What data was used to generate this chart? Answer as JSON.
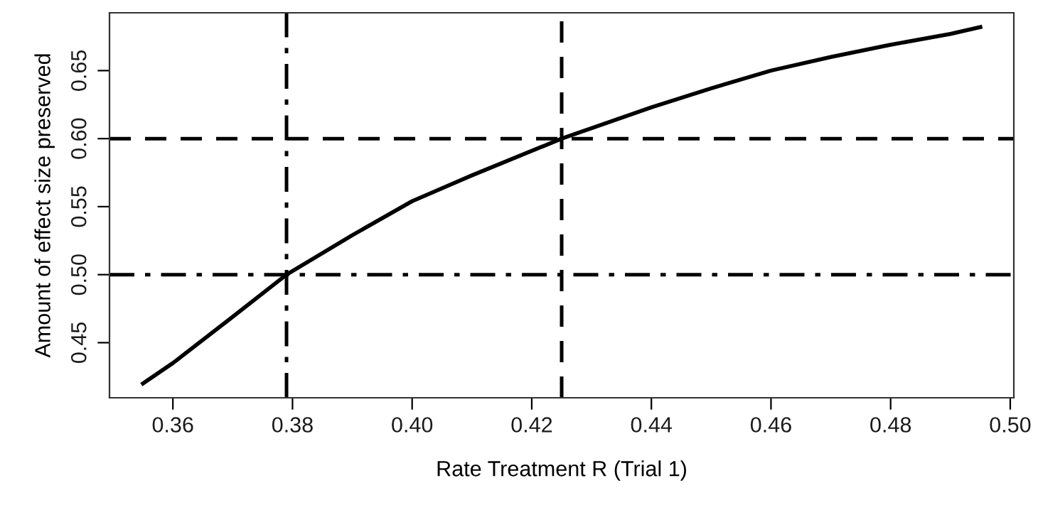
{
  "chart_data": {
    "type": "line",
    "xlabel": "Rate Treatment R (Trial 1)",
    "ylabel": "Amount of effect size preserved",
    "x": [
      0.355,
      0.36,
      0.37,
      0.379,
      0.39,
      0.4,
      0.41,
      0.425,
      0.44,
      0.45,
      0.46,
      0.47,
      0.48,
      0.49,
      0.495
    ],
    "series": [
      {
        "color": "#000000",
        "values": [
          0.42,
          0.435,
          0.469,
          0.5,
          0.529,
          0.554,
          0.573,
          0.6,
          0.623,
          0.637,
          0.65,
          0.66,
          0.669,
          0.677,
          0.682
        ]
      }
    ],
    "xlim": [
      0.3494,
      0.5006
    ],
    "ylim": [
      0.4095,
      0.6925
    ],
    "xticks": [
      0.36,
      0.38,
      {
        "value": 0.4,
        "label": "0.40"
      },
      0.42,
      0.44,
      0.46,
      0.48,
      {
        "value": 0.5,
        "label": "0.50"
      }
    ],
    "yticks": [
      0.45,
      {
        "value": 0.5,
        "label": "0.50"
      },
      0.55,
      {
        "value": 0.6,
        "label": "0.60"
      },
      0.65
    ],
    "ref_lines": [
      {
        "axis": "x",
        "value": 0.379,
        "color": "#000000",
        "line_style": "dashdot"
      },
      {
        "axis": "x",
        "value": 0.425,
        "color": "#000000",
        "line_style": "dashed"
      },
      {
        "axis": "y",
        "value": 0.6,
        "color": "#000000",
        "line_style": "dashed"
      },
      {
        "axis": "y",
        "value": 0.5,
        "color": "#000000",
        "line_style": "dashdot"
      }
    ],
    "grid": false,
    "marker": "none",
    "line_style": "solid"
  }
}
